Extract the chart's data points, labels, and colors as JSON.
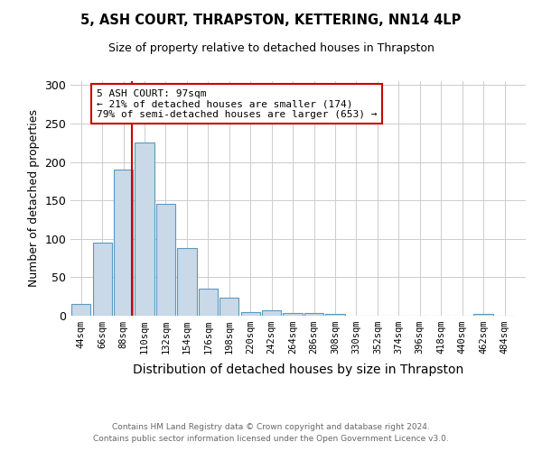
{
  "title1": "5, ASH COURT, THRAPSTON, KETTERING, NN14 4LP",
  "title2": "Size of property relative to detached houses in Thrapston",
  "xlabel": "Distribution of detached houses by size in Thrapston",
  "ylabel": "Number of detached properties",
  "bar_color": "#c9d9e8",
  "bar_edge_color": "#5a9abf",
  "categories": [
    "44sqm",
    "66sqm",
    "88sqm",
    "110sqm",
    "132sqm",
    "154sqm",
    "176sqm",
    "198sqm",
    "220sqm",
    "242sqm",
    "264sqm",
    "286sqm",
    "308sqm",
    "330sqm",
    "352sqm",
    "374sqm",
    "396sqm",
    "418sqm",
    "440sqm",
    "462sqm",
    "484sqm"
  ],
  "values": [
    15,
    95,
    190,
    225,
    145,
    88,
    35,
    24,
    5,
    7,
    4,
    3,
    2,
    0,
    0,
    0,
    0,
    0,
    0,
    2,
    0
  ],
  "x_positions": [
    44,
    66,
    88,
    110,
    132,
    154,
    176,
    198,
    220,
    242,
    264,
    286,
    308,
    330,
    352,
    374,
    396,
    418,
    440,
    462,
    484
  ],
  "ylim": [
    0,
    305
  ],
  "yticks": [
    0,
    50,
    100,
    150,
    200,
    250,
    300
  ],
  "vline_x": 97,
  "vline_color": "#cc0000",
  "annotation_text": "5 ASH COURT: 97sqm\n← 21% of detached houses are smaller (174)\n79% of semi-detached houses are larger (653) →",
  "annotation_box_color": "#ffffff",
  "annotation_box_edge": "#cc0000",
  "footnote1": "Contains HM Land Registry data © Crown copyright and database right 2024.",
  "footnote2": "Contains public sector information licensed under the Open Government Licence v3.0.",
  "bg_color": "#ffffff",
  "grid_color": "#cccccc"
}
